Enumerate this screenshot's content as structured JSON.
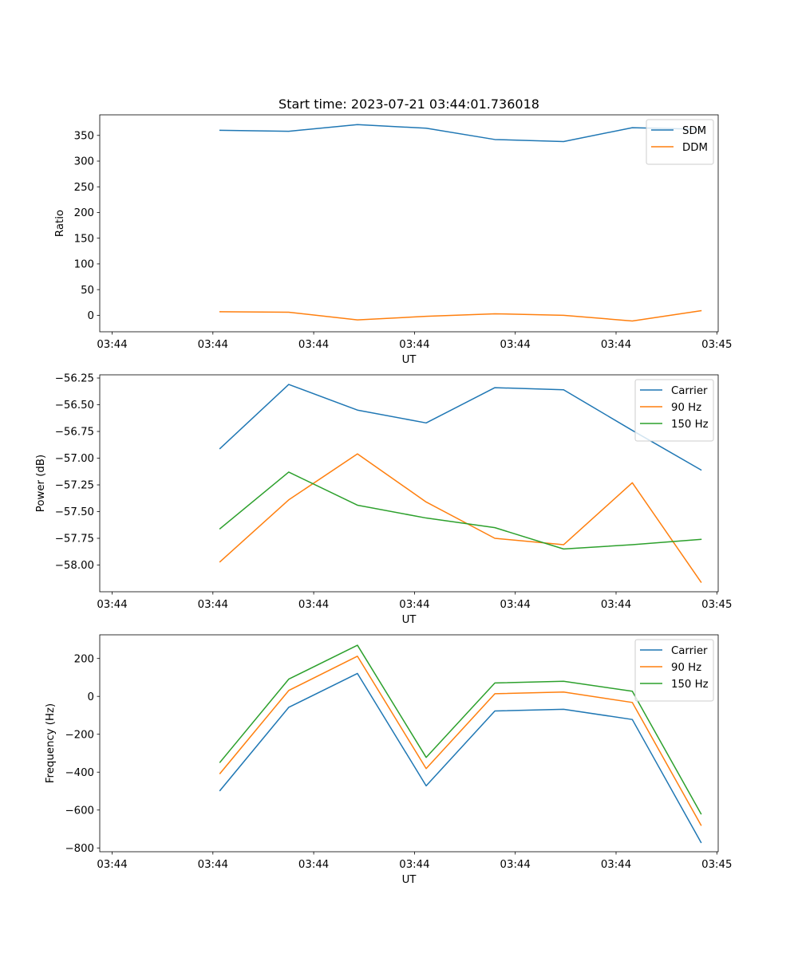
{
  "chart_data": [
    {
      "type": "line",
      "title": "Start time: 2023-07-21 03:44:01.736018",
      "xlabel": "UT",
      "ylabel": "Ratio",
      "x_ticks": [
        "03:44",
        "03:44",
        "03:44",
        "03:44",
        "03:44",
        "03:44",
        "03:45"
      ],
      "x": [
        1,
        2,
        3,
        4,
        5,
        6,
        7,
        8
      ],
      "xlim": [
        -0.75,
        8.25
      ],
      "ylim": [
        -32,
        390
      ],
      "y_ticks": [
        0,
        50,
        100,
        150,
        200,
        250,
        300,
        350
      ],
      "legend": "top-right",
      "series": [
        {
          "name": "SDM",
          "color": "#1f77b4",
          "values": [
            360,
            358,
            371,
            364,
            342,
            338,
            365,
            362
          ]
        },
        {
          "name": "DDM",
          "color": "#ff7f0e",
          "values": [
            7,
            6,
            -9,
            -2,
            3,
            0,
            -11,
            9
          ]
        }
      ]
    },
    {
      "type": "line",
      "title": "",
      "xlabel": "UT",
      "ylabel": "Power (dB)",
      "x_ticks": [
        "03:44",
        "03:44",
        "03:44",
        "03:44",
        "03:44",
        "03:44",
        "03:45"
      ],
      "x": [
        1,
        2,
        3,
        4,
        5,
        6,
        7,
        8
      ],
      "xlim": [
        -0.75,
        8.25
      ],
      "ylim": [
        -58.25,
        -56.22
      ],
      "y_ticks": [
        -58.0,
        -57.75,
        -57.5,
        -57.25,
        -57.0,
        -56.75,
        -56.5,
        -56.25
      ],
      "y_tick_labels": [
        "−58.00",
        "−57.75",
        "−57.50",
        "−57.25",
        "−57.00",
        "−56.75",
        "−56.50",
        "−56.25"
      ],
      "legend": "top-right",
      "series": [
        {
          "name": "Carrier",
          "color": "#1f77b4",
          "values": [
            -56.91,
            -56.31,
            -56.55,
            -56.67,
            -56.34,
            -56.36,
            -56.74,
            -57.11
          ]
        },
        {
          "name": "90 Hz",
          "color": "#ff7f0e",
          "values": [
            -57.97,
            -57.39,
            -56.96,
            -57.41,
            -57.75,
            -57.81,
            -57.23,
            -58.16
          ]
        },
        {
          "name": "150 Hz",
          "color": "#2ca02c",
          "values": [
            -57.66,
            -57.13,
            -57.44,
            -57.56,
            -57.65,
            -57.85,
            -57.81,
            -57.76
          ]
        }
      ]
    },
    {
      "type": "line",
      "title": "",
      "xlabel": "UT",
      "ylabel": "Frequency (Hz)",
      "x_ticks": [
        "03:44",
        "03:44",
        "03:44",
        "03:44",
        "03:44",
        "03:44",
        "03:45"
      ],
      "x": [
        1,
        2,
        3,
        4,
        5,
        6,
        7,
        8
      ],
      "xlim": [
        -0.75,
        8.25
      ],
      "ylim": [
        -820,
        325
      ],
      "y_ticks": [
        -800,
        -600,
        -400,
        -200,
        0,
        200
      ],
      "y_tick_labels": [
        "−800",
        "−600",
        "−400",
        "−200",
        "0",
        "200"
      ],
      "legend": "top-right",
      "series": [
        {
          "name": "Carrier",
          "color": "#1f77b4",
          "values": [
            -497,
            -58,
            121,
            -472,
            -77,
            -68,
            -122,
            -771
          ]
        },
        {
          "name": "90 Hz",
          "color": "#ff7f0e",
          "values": [
            -407,
            31,
            212,
            -381,
            14,
            23,
            -32,
            -680
          ]
        },
        {
          "name": "150 Hz",
          "color": "#2ca02c",
          "values": [
            -348,
            91,
            270,
            -322,
            71,
            80,
            27,
            -620
          ]
        }
      ]
    }
  ]
}
